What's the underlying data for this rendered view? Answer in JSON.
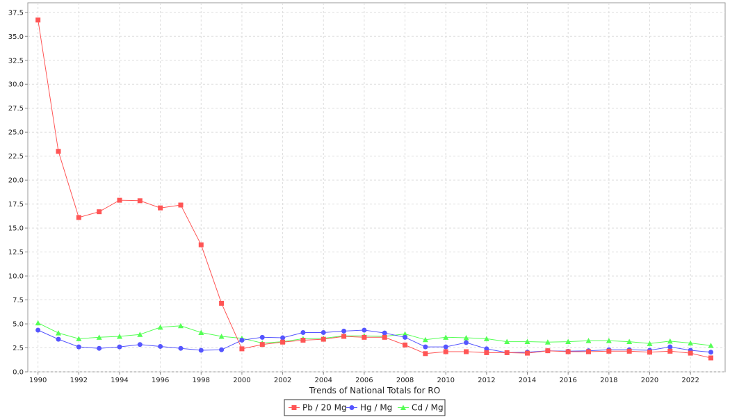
{
  "chart_data": {
    "type": "line",
    "title": "",
    "xlabel": "Trends of National Totals for RO",
    "ylabel": "",
    "x": [
      1990,
      1991,
      1992,
      1993,
      1994,
      1995,
      1996,
      1997,
      1998,
      1999,
      2000,
      2001,
      2002,
      2003,
      2004,
      2005,
      2006,
      2007,
      2008,
      2009,
      2010,
      2011,
      2012,
      2013,
      2014,
      2015,
      2016,
      2017,
      2018,
      2019,
      2020,
      2021,
      2022,
      2023
    ],
    "xlim": [
      1989.5,
      2023.7
    ],
    "ylim": [
      0,
      38.5
    ],
    "x_ticks": [
      1990,
      1992,
      1994,
      1996,
      1998,
      2000,
      2002,
      2004,
      2006,
      2008,
      2010,
      2012,
      2014,
      2016,
      2018,
      2020,
      2022
    ],
    "y_ticks": [
      0.0,
      2.5,
      5.0,
      7.5,
      10.0,
      12.5,
      15.0,
      17.5,
      20.0,
      22.5,
      25.0,
      27.5,
      30.0,
      32.5,
      35.0,
      37.5
    ],
    "grid": true,
    "legend_position": "bottom",
    "series": [
      {
        "name": "Pb / 20 Mg",
        "color": "#ff5555",
        "marker": "square",
        "values": [
          36.7,
          23.0,
          16.1,
          16.7,
          17.9,
          17.85,
          17.1,
          17.4,
          13.25,
          7.15,
          2.4,
          2.85,
          3.1,
          3.3,
          3.4,
          3.7,
          3.6,
          3.6,
          2.8,
          1.9,
          2.1,
          2.1,
          2.0,
          2.0,
          1.95,
          2.2,
          2.1,
          2.1,
          2.15,
          2.15,
          2.05,
          2.15,
          1.95,
          1.45
        ]
      },
      {
        "name": "Hg / Mg",
        "color": "#5555ff",
        "marker": "circle",
        "values": [
          4.35,
          3.4,
          2.6,
          2.45,
          2.6,
          2.85,
          2.65,
          2.45,
          2.25,
          2.3,
          3.3,
          3.6,
          3.55,
          4.1,
          4.1,
          4.25,
          4.35,
          4.05,
          3.6,
          2.6,
          2.6,
          3.05,
          2.4,
          2.0,
          2.05,
          2.2,
          2.15,
          2.2,
          2.3,
          2.3,
          2.25,
          2.6,
          2.25,
          2.05
        ]
      },
      {
        "name": "Cd / Mg",
        "color": "#55ff55",
        "marker": "triangle",
        "values": [
          5.1,
          4.05,
          3.45,
          3.6,
          3.7,
          3.9,
          4.65,
          4.8,
          4.1,
          3.7,
          3.5,
          3.0,
          3.15,
          3.45,
          3.5,
          3.75,
          3.75,
          3.7,
          3.95,
          3.35,
          3.6,
          3.55,
          3.45,
          3.15,
          3.15,
          3.1,
          3.15,
          3.25,
          3.25,
          3.15,
          2.95,
          3.2,
          3.0,
          2.75
        ]
      }
    ]
  }
}
